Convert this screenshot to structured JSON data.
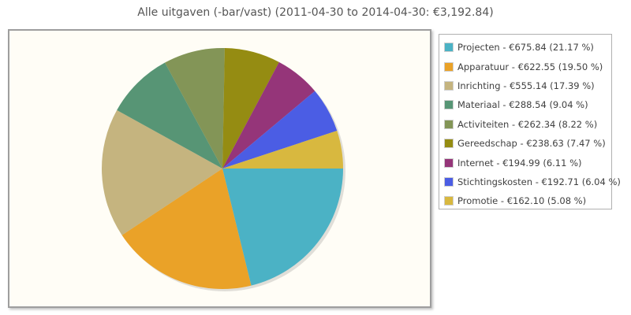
{
  "chart_data": {
    "type": "pie",
    "title": "Alle uitgaven (-bar/vast) (2011-04-30 to 2014-04-30: €3,192.84)",
    "legend_position": "right",
    "slices": [
      {
        "name": "Projecten",
        "value": 675.84,
        "percent": 21.17,
        "label": "Projecten - €675.84 (21.17 %)",
        "color": "#4bb2c5"
      },
      {
        "name": "Apparatuur",
        "value": 622.55,
        "percent": 19.5,
        "label": "Apparatuur - €622.55 (19.50 %)",
        "color": "#eaa228"
      },
      {
        "name": "Inrichting",
        "value": 555.14,
        "percent": 17.39,
        "label": "Inrichting - €555.14 (17.39 %)",
        "color": "#c5b47f"
      },
      {
        "name": "Materiaal",
        "value": 288.54,
        "percent": 9.04,
        "label": "Materiaal - €288.54 (9.04 %)",
        "color": "#579575"
      },
      {
        "name": "Activiteiten",
        "value": 262.34,
        "percent": 8.22,
        "label": "Activiteiten - €262.34 (8.22 %)",
        "color": "#839557"
      },
      {
        "name": "Gereedschap",
        "value": 238.63,
        "percent": 7.47,
        "label": "Gereedschap - €238.63 (7.47 %)",
        "color": "#958c12"
      },
      {
        "name": "Internet",
        "value": 194.99,
        "percent": 6.11,
        "label": "Internet - €194.99 (6.11 %)",
        "color": "#953579"
      },
      {
        "name": "Stichtingskosten",
        "value": 192.71,
        "percent": 6.04,
        "label": "Stichtingskosten - €192.71 (6.04 %)",
        "color": "#4b5de4"
      },
      {
        "name": "Promotie",
        "value": 162.1,
        "percent": 5.08,
        "label": "Promotie - €162.10 (5.08 %)",
        "color": "#d8b83f"
      }
    ]
  }
}
